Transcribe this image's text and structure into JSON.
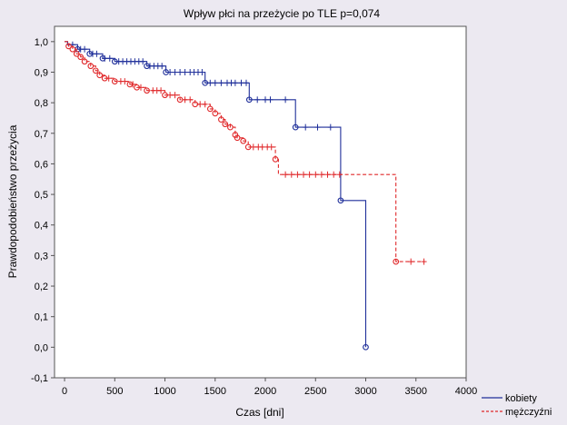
{
  "chart_data": {
    "type": "line",
    "title": "Wpływ płci na przeżycie po TLE p=0,074",
    "xlabel": "Czas [dni]",
    "ylabel": "Prawdopodobieństwo przeżycia",
    "xlim": [
      -100,
      4000
    ],
    "ylim": [
      -0.1,
      1.05
    ],
    "xticks": [
      0,
      500,
      1000,
      1500,
      2000,
      2500,
      3000,
      3500,
      4000
    ],
    "xtick_labels": [
      "0",
      "500",
      "1000",
      "1500",
      "2000",
      "2500",
      "3000",
      "3500",
      "4000"
    ],
    "yticks": [
      -0.1,
      0.0,
      0.1,
      0.2,
      0.3,
      0.4,
      0.5,
      0.6,
      0.7,
      0.8,
      0.9,
      1.0
    ],
    "ytick_labels": [
      "-0,1",
      "0,0",
      "0,1",
      "0,2",
      "0,3",
      "0,4",
      "0,5",
      "0,6",
      "0,7",
      "0,8",
      "0,9",
      "1,0"
    ],
    "legend_position": "bottom-right, outside plot",
    "series": [
      {
        "name": "kobiety",
        "color": "#1f2f9a",
        "style": "solid",
        "steps": [
          [
            0,
            1.0
          ],
          [
            30,
            0.99
          ],
          [
            130,
            0.975
          ],
          [
            250,
            0.96
          ],
          [
            380,
            0.945
          ],
          [
            500,
            0.935
          ],
          [
            820,
            0.92
          ],
          [
            1010,
            0.9
          ],
          [
            1400,
            0.865
          ],
          [
            1840,
            0.81
          ],
          [
            2300,
            0.72
          ],
          [
            2750,
            0.48
          ],
          [
            3000,
            0.0
          ]
        ],
        "events": [
          [
            130,
            0.975
          ],
          [
            250,
            0.96
          ],
          [
            380,
            0.945
          ],
          [
            500,
            0.935
          ],
          [
            820,
            0.92
          ],
          [
            1010,
            0.9
          ],
          [
            1400,
            0.865
          ],
          [
            1840,
            0.81
          ],
          [
            2300,
            0.72
          ],
          [
            2750,
            0.48
          ],
          [
            3000,
            0.0
          ]
        ],
        "censored": [
          [
            80,
            0.99
          ],
          [
            160,
            0.975
          ],
          [
            200,
            0.975
          ],
          [
            280,
            0.96
          ],
          [
            320,
            0.96
          ],
          [
            400,
            0.945
          ],
          [
            450,
            0.945
          ],
          [
            540,
            0.935
          ],
          [
            580,
            0.935
          ],
          [
            620,
            0.935
          ],
          [
            660,
            0.935
          ],
          [
            700,
            0.935
          ],
          [
            740,
            0.935
          ],
          [
            780,
            0.935
          ],
          [
            850,
            0.92
          ],
          [
            890,
            0.92
          ],
          [
            930,
            0.92
          ],
          [
            970,
            0.92
          ],
          [
            1050,
            0.9
          ],
          [
            1100,
            0.9
          ],
          [
            1150,
            0.9
          ],
          [
            1200,
            0.9
          ],
          [
            1250,
            0.9
          ],
          [
            1290,
            0.9
          ],
          [
            1330,
            0.9
          ],
          [
            1370,
            0.9
          ],
          [
            1450,
            0.865
          ],
          [
            1500,
            0.865
          ],
          [
            1560,
            0.865
          ],
          [
            1620,
            0.865
          ],
          [
            1660,
            0.865
          ],
          [
            1700,
            0.865
          ],
          [
            1760,
            0.865
          ],
          [
            1810,
            0.865
          ],
          [
            1920,
            0.81
          ],
          [
            2000,
            0.81
          ],
          [
            2050,
            0.81
          ],
          [
            2200,
            0.81
          ],
          [
            2400,
            0.72
          ],
          [
            2520,
            0.72
          ],
          [
            2650,
            0.72
          ]
        ]
      },
      {
        "name": "mężczyźni",
        "color": "#e0282a",
        "style": "dashed",
        "steps": [
          [
            0,
            1.0
          ],
          [
            40,
            0.985
          ],
          [
            80,
            0.975
          ],
          [
            120,
            0.96
          ],
          [
            160,
            0.95
          ],
          [
            200,
            0.935
          ],
          [
            260,
            0.92
          ],
          [
            310,
            0.905
          ],
          [
            350,
            0.89
          ],
          [
            400,
            0.88
          ],
          [
            500,
            0.87
          ],
          [
            650,
            0.86
          ],
          [
            720,
            0.85
          ],
          [
            820,
            0.84
          ],
          [
            1000,
            0.825
          ],
          [
            1150,
            0.81
          ],
          [
            1300,
            0.795
          ],
          [
            1450,
            0.78
          ],
          [
            1500,
            0.765
          ],
          [
            1560,
            0.745
          ],
          [
            1600,
            0.73
          ],
          [
            1650,
            0.72
          ],
          [
            1700,
            0.695
          ],
          [
            1720,
            0.685
          ],
          [
            1780,
            0.675
          ],
          [
            1830,
            0.655
          ],
          [
            2100,
            0.615
          ],
          [
            2130,
            0.565
          ],
          [
            3300,
            0.28
          ]
        ],
        "events": [
          [
            40,
            0.985
          ],
          [
            80,
            0.975
          ],
          [
            120,
            0.96
          ],
          [
            160,
            0.95
          ],
          [
            200,
            0.935
          ],
          [
            260,
            0.92
          ],
          [
            310,
            0.905
          ],
          [
            350,
            0.89
          ],
          [
            400,
            0.88
          ],
          [
            500,
            0.87
          ],
          [
            650,
            0.86
          ],
          [
            720,
            0.85
          ],
          [
            820,
            0.84
          ],
          [
            1000,
            0.825
          ],
          [
            1150,
            0.81
          ],
          [
            1300,
            0.795
          ],
          [
            1450,
            0.78
          ],
          [
            1500,
            0.765
          ],
          [
            1560,
            0.745
          ],
          [
            1600,
            0.73
          ],
          [
            1650,
            0.72
          ],
          [
            1700,
            0.695
          ],
          [
            1720,
            0.685
          ],
          [
            1780,
            0.675
          ],
          [
            1830,
            0.655
          ],
          [
            2100,
            0.615
          ],
          [
            3300,
            0.28
          ]
        ],
        "censored": [
          [
            440,
            0.88
          ],
          [
            560,
            0.87
          ],
          [
            600,
            0.87
          ],
          [
            680,
            0.86
          ],
          [
            760,
            0.85
          ],
          [
            880,
            0.84
          ],
          [
            920,
            0.84
          ],
          [
            960,
            0.84
          ],
          [
            1050,
            0.825
          ],
          [
            1100,
            0.825
          ],
          [
            1200,
            0.81
          ],
          [
            1250,
            0.81
          ],
          [
            1350,
            0.795
          ],
          [
            1400,
            0.795
          ],
          [
            1880,
            0.655
          ],
          [
            1930,
            0.655
          ],
          [
            1970,
            0.655
          ],
          [
            2020,
            0.655
          ],
          [
            2060,
            0.655
          ],
          [
            2200,
            0.565
          ],
          [
            2260,
            0.565
          ],
          [
            2320,
            0.565
          ],
          [
            2380,
            0.565
          ],
          [
            2440,
            0.565
          ],
          [
            2500,
            0.565
          ],
          [
            2560,
            0.565
          ],
          [
            2620,
            0.565
          ],
          [
            2680,
            0.565
          ],
          [
            2740,
            0.565
          ],
          [
            3450,
            0.28
          ],
          [
            3580,
            0.28
          ]
        ],
        "tail_end": [
          3580,
          0.28
        ]
      }
    ]
  }
}
